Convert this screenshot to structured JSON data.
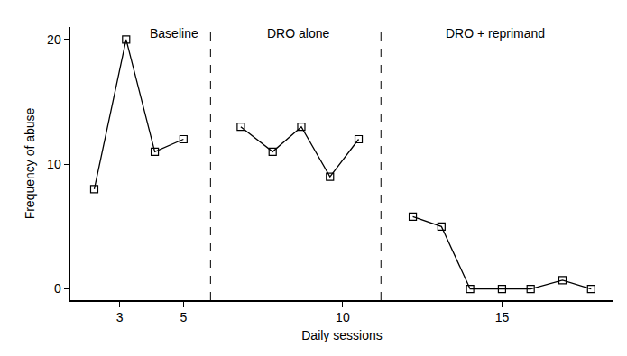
{
  "chart_data": {
    "type": "line",
    "x_label": "Daily sessions",
    "y_label": "Frequency of abuse",
    "xlim": [
      1.45,
      18.5
    ],
    "xticks": [
      3,
      5,
      10,
      15
    ],
    "ylim": [
      -0.9,
      21
    ],
    "yticks": [
      0,
      10,
      20
    ],
    "grid": false,
    "marker": "square-open",
    "line_style": "solid",
    "series": [
      {
        "color": "#000000",
        "x": [
          2.2,
          3.2,
          4.1,
          5.0
        ],
        "values": [
          8,
          20,
          11,
          12
        ]
      },
      {
        "color": "#000000",
        "x": [
          6.8,
          7.8,
          8.7,
          9.6,
          10.5
        ],
        "values": [
          13,
          11,
          13,
          9,
          12
        ]
      },
      {
        "color": "#000000",
        "x": [
          12.2,
          13.1,
          14.0,
          15.0,
          15.9,
          16.9,
          17.8
        ],
        "values": [
          5.8,
          5,
          0,
          0,
          0,
          0.7,
          0
        ]
      }
    ],
    "phase_lines": [
      5.85,
      11.2
    ],
    "annotations": [
      {
        "text": "Baseline",
        "x": 4.7,
        "y": 20.5
      },
      {
        "text": "DRO alone",
        "x": 8.6,
        "y": 20.5
      },
      {
        "text": "DRO + reprimand",
        "x": 14.8,
        "y": 20.5
      }
    ]
  }
}
